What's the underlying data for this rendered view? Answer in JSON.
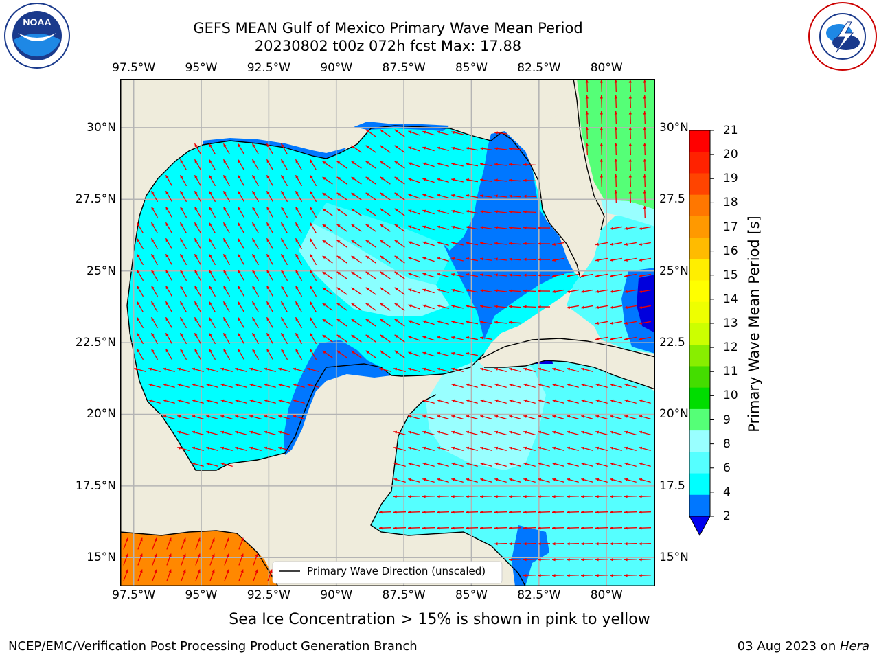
{
  "title_line1": "GEFS MEAN Gulf of Mexico Primary Wave Mean Period",
  "title_line2": "20230802 t00z 072h fcst   Max: 17.88",
  "caption": "Sea Ice Concentration > 15% is shown in pink to yellow",
  "footer_left": "NCEP/EMC/Verification Post Processing Product Generation Branch",
  "footer_right_date": "03 Aug 2023 on ",
  "footer_right_machine": "Hera",
  "legend_label": "Primary Wave Direction (unscaled)",
  "logos": {
    "left": "NOAA",
    "right": "NATIONAL WEATHER SERVICE"
  },
  "lon_labels": [
    "97.5°W",
    "95°W",
    "92.5°W",
    "90°W",
    "87.5°W",
    "85°W",
    "82.5°W",
    "80°W"
  ],
  "lat_labels_left": [
    "30°N",
    "27.5°N",
    "25°N",
    "22.5°N",
    "20°N",
    "17.5°N",
    "15°N"
  ],
  "lat_labels_right": [
    "30°N",
    "27.5",
    "25°N",
    "22.5",
    "20°N",
    "17.5",
    "15°N"
  ],
  "colorbar": {
    "label": "Primary Wave Mean Period [s]",
    "ticks": [
      "21",
      "20",
      "19",
      "18",
      "17",
      "16",
      "15",
      "14",
      "13",
      "12",
      "11",
      "10",
      "9",
      "8",
      "6",
      "4",
      "2"
    ],
    "colors": [
      "#ff0000",
      "#ff2200",
      "#ff4400",
      "#ff7700",
      "#ff9900",
      "#ffbb00",
      "#ffee00",
      "#ffff00",
      "#eeff00",
      "#ccff00",
      "#88ee00",
      "#44dd00",
      "#00dd00",
      "#55ff77",
      "#99ffff",
      "#55ffff",
      "#00ffff",
      "#0077ff"
    ],
    "extend_color": "#0000ee"
  },
  "colors": {
    "land": "#efecdc",
    "ocean_main": "#00ffff",
    "ocean_light": "#99ffff",
    "ocean_mid": "#55ffff",
    "ocean_dark": "#0077ff",
    "ocean_darkest": "#0000dd",
    "atlantic": "#55ff77",
    "pacific_orange": "#ff8800",
    "arrow": "#ee0000",
    "grid": "#b4b4b4"
  },
  "map_extent": {
    "lon_west": 98,
    "lon_east": 78.2,
    "lat_south": 14,
    "lat_north": 31.7
  }
}
